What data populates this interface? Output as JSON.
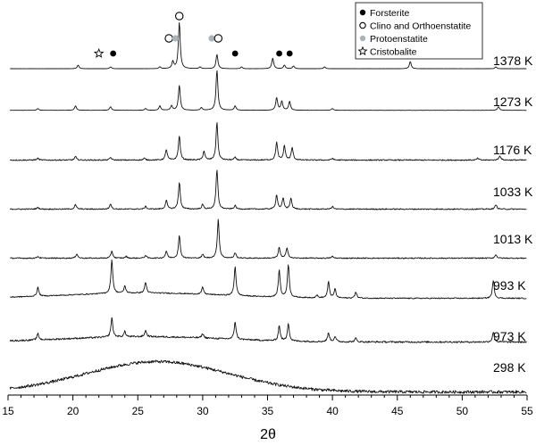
{
  "chart_data": {
    "type": "line",
    "xlabel": "2θ",
    "ylabel": "",
    "xlim": [
      15,
      55
    ],
    "xticks": [
      15,
      20,
      25,
      30,
      35,
      40,
      45,
      50,
      55
    ],
    "grid": false,
    "legend_position": "top-right",
    "legend": [
      {
        "label": "Forsterite",
        "marker": "filled-circle",
        "color": "#000000"
      },
      {
        "label": "Clino and Orthoenstatite",
        "marker": "open-circle",
        "color": "#000000"
      },
      {
        "label": "Protoenstatite",
        "marker": "filled-circle",
        "color": "#a8b4bc"
      },
      {
        "label": "Cristobalite",
        "marker": "open-star",
        "color": "#000000"
      }
    ],
    "series": [
      {
        "name": "1378 K",
        "baseline": 0.95,
        "noise": 0.05,
        "hump": null,
        "peaks": [
          [
            20.4,
            4
          ],
          [
            22.9,
            2
          ],
          [
            26.7,
            2
          ],
          [
            27.7,
            8
          ],
          [
            28.2,
            52
          ],
          [
            29.8,
            2
          ],
          [
            31.1,
            16
          ],
          [
            33.0,
            2
          ],
          [
            35.4,
            12
          ],
          [
            36.3,
            4
          ],
          [
            37.0,
            3
          ],
          [
            39.4,
            2
          ],
          [
            46.0,
            8
          ],
          [
            52.6,
            2
          ]
        ]
      },
      {
        "name": "1273 K",
        "baseline": 1.3,
        "noise": 0.1,
        "hump": null,
        "peaks": [
          [
            17.3,
            2
          ],
          [
            20.2,
            5
          ],
          [
            22.9,
            4
          ],
          [
            25.6,
            2
          ],
          [
            26.7,
            5
          ],
          [
            27.6,
            5
          ],
          [
            28.2,
            28
          ],
          [
            29.9,
            3
          ],
          [
            31.1,
            45
          ],
          [
            32.5,
            5
          ],
          [
            35.7,
            14
          ],
          [
            36.1,
            10
          ],
          [
            36.7,
            10
          ],
          [
            40.0,
            2
          ],
          [
            52.8,
            4
          ]
        ]
      },
      {
        "name": "1176 K",
        "baseline": 1.5,
        "noise": 0.6,
        "hump": null,
        "peaks": [
          [
            17.3,
            2
          ],
          [
            20.2,
            4
          ],
          [
            22.9,
            3
          ],
          [
            25.5,
            2
          ],
          [
            27.2,
            12
          ],
          [
            28.2,
            27
          ],
          [
            30.1,
            10
          ],
          [
            31.1,
            42
          ],
          [
            32.5,
            3
          ],
          [
            35.7,
            20
          ],
          [
            36.3,
            16
          ],
          [
            36.9,
            14
          ],
          [
            40.0,
            2
          ],
          [
            51.2,
            2
          ],
          [
            52.9,
            5
          ]
        ]
      },
      {
        "name": "1033 K",
        "baseline": 1.5,
        "noise": 0.6,
        "hump": null,
        "peaks": [
          [
            17.3,
            2
          ],
          [
            20.2,
            5
          ],
          [
            22.9,
            6
          ],
          [
            25.6,
            3
          ],
          [
            27.2,
            10
          ],
          [
            28.2,
            30
          ],
          [
            30.0,
            5
          ],
          [
            31.1,
            44
          ],
          [
            32.5,
            4
          ],
          [
            35.7,
            16
          ],
          [
            36.2,
            12
          ],
          [
            36.8,
            12
          ],
          [
            40.0,
            3
          ],
          [
            52.6,
            5
          ]
        ]
      },
      {
        "name": "1013 K",
        "baseline": 1.5,
        "noise": 0.6,
        "hump": null,
        "peaks": [
          [
            17.3,
            2
          ],
          [
            20.3,
            5
          ],
          [
            23.0,
            8
          ],
          [
            24.1,
            2
          ],
          [
            25.6,
            3
          ],
          [
            27.2,
            8
          ],
          [
            28.2,
            25
          ],
          [
            30.0,
            4
          ],
          [
            31.2,
            44
          ],
          [
            32.5,
            6
          ],
          [
            35.9,
            12
          ],
          [
            36.5,
            12
          ],
          [
            40.0,
            2
          ],
          [
            52.6,
            4
          ]
        ]
      },
      {
        "name": "993 K",
        "baseline": 1.5,
        "noise": 0.6,
        "hump": {
          "center": 25.5,
          "width": 6,
          "height": 6
        },
        "peaks": [
          [
            17.3,
            10
          ],
          [
            23.0,
            38
          ],
          [
            24.0,
            8
          ],
          [
            25.6,
            12
          ],
          [
            30.0,
            8
          ],
          [
            32.5,
            33
          ],
          [
            35.9,
            30
          ],
          [
            36.6,
            37
          ],
          [
            38.8,
            3
          ],
          [
            39.7,
            18
          ],
          [
            40.2,
            10
          ],
          [
            41.8,
            7
          ],
          [
            52.4,
            20
          ]
        ]
      },
      {
        "name": "973 K",
        "baseline": 1.5,
        "noise": 0.9,
        "hump": {
          "center": 25.5,
          "width": 6,
          "height": 6
        },
        "peaks": [
          [
            17.3,
            7
          ],
          [
            23.0,
            22
          ],
          [
            24.0,
            6
          ],
          [
            25.6,
            7
          ],
          [
            30.0,
            5
          ],
          [
            32.5,
            20
          ],
          [
            35.9,
            17
          ],
          [
            36.6,
            20
          ],
          [
            39.7,
            10
          ],
          [
            40.2,
            6
          ],
          [
            41.8,
            4
          ],
          [
            52.4,
            11
          ]
        ]
      },
      {
        "name": "298 K",
        "baseline": 1.5,
        "noise": 1.6,
        "hump": {
          "center": 26.5,
          "width": 5.5,
          "height": 34
        },
        "peaks": []
      }
    ],
    "phase_markers": [
      {
        "phase": "Cristobalite",
        "x": 22.0
      },
      {
        "phase": "Forsterite",
        "x": 23.1
      },
      {
        "phase": "Clino and Orthoenstatite",
        "x": 27.4
      },
      {
        "phase": "Protoenstatite",
        "x": 27.9
      },
      {
        "phase": "Clino and Orthoenstatite",
        "x": 28.2
      },
      {
        "phase": "Protoenstatite",
        "x": 30.7
      },
      {
        "phase": "Clino and Orthoenstatite",
        "x": 31.2
      },
      {
        "phase": "Forsterite",
        "x": 32.5
      },
      {
        "phase": "Forsterite",
        "x": 35.9
      },
      {
        "phase": "Forsterite",
        "x": 36.7
      }
    ]
  }
}
